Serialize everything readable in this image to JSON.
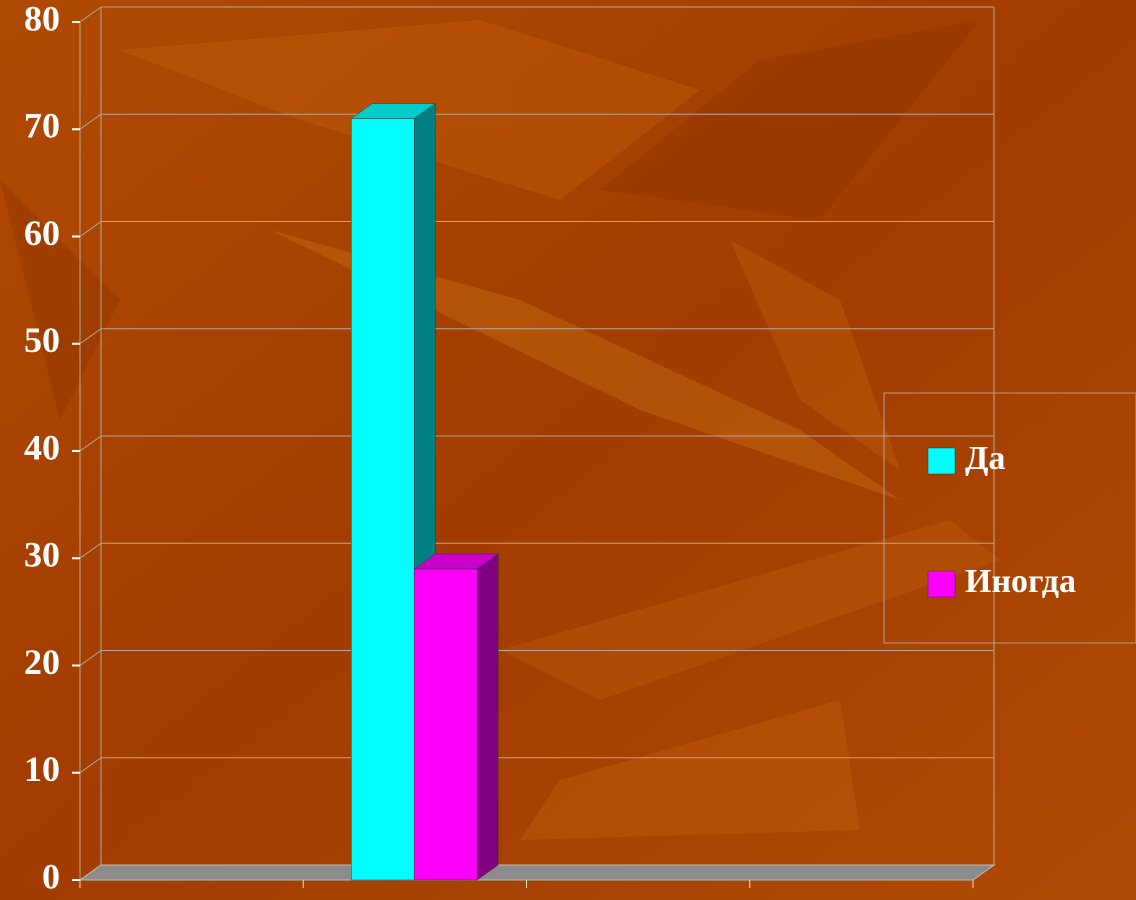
{
  "chart_data": {
    "type": "bar3d",
    "categories": [
      null,
      null,
      null,
      null
    ],
    "series": [
      {
        "name": "Да",
        "color": "#00ffff",
        "values": [
          null,
          71,
          null,
          null
        ]
      },
      {
        "name": "Иногда",
        "color": "#ff00ff",
        "values": [
          null,
          29,
          null,
          null
        ]
      }
    ],
    "ylim": [
      0,
      80
    ],
    "yticks": [
      0,
      10,
      20,
      30,
      40,
      50,
      60,
      70,
      80
    ],
    "grid": true,
    "legend": "right"
  }
}
